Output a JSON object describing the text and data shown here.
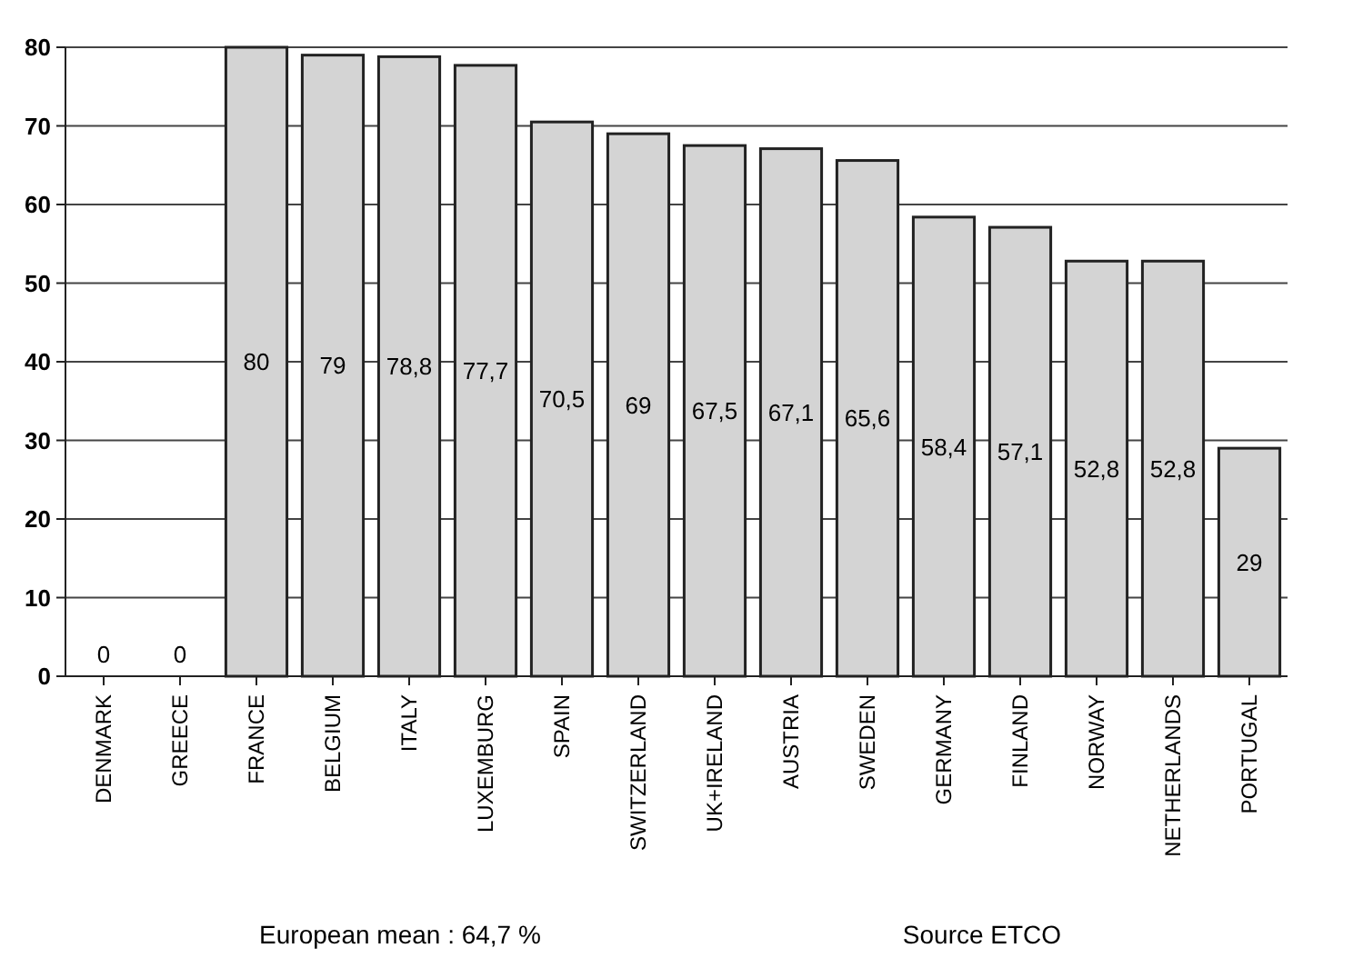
{
  "chart_data": {
    "type": "bar",
    "categories": [
      "DENMARK",
      "GREECE",
      "FRANCE",
      "BELGIUM",
      "ITALY",
      "LUXEMBURG",
      "SPAIN",
      "SWITZERLAND",
      "UK+IRELAND",
      "AUSTRIA",
      "SWEDEN",
      "GERMANY",
      "FINLAND",
      "NORWAY",
      "NETHERLANDS",
      "PORTUGAL"
    ],
    "values": [
      0,
      0,
      80,
      79,
      78.8,
      77.7,
      70.5,
      69,
      67.5,
      67.1,
      65.6,
      58.4,
      57.1,
      52.8,
      52.8,
      29
    ],
    "value_labels": [
      "0",
      "0",
      "80",
      "79",
      "78,8",
      "77,7",
      "70,5",
      "69",
      "67,5",
      "67,1",
      "65,6",
      "58,4",
      "57,1",
      "52,8",
      "52,8",
      "29"
    ],
    "color": "#d4d4d4",
    "ylim": [
      0,
      80
    ],
    "yticks": [
      0,
      10,
      20,
      30,
      40,
      50,
      60,
      70,
      80
    ],
    "grid": "y",
    "annotations": [
      "European mean : 64,7 %",
      "Source ETCO"
    ]
  }
}
